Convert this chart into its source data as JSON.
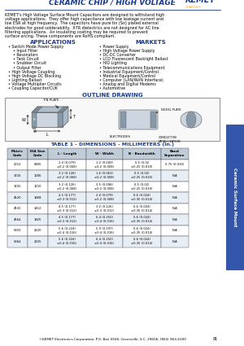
{
  "title": "CERAMIC CHIP / HIGH VOLTAGE",
  "kemet_color": "#1a3a8a",
  "orange_color": "#f5a800",
  "body_text": "KEMET's High Voltage Surface Mount Capacitors are designed to withstand high voltage applications.  They offer high capacitance with low leakage current and low ESR at high frequency.  The capacitors have pure tin (Sn) plated external electrodes for good solderability.  X7R dielectrics are not designed for AC line filtering applications.  An insulating coating may be required to prevent surface arcing. These components are RoHS compliant.",
  "applications_title": "APPLICATIONS",
  "applications": [
    "• Switch Mode Power Supply",
    "    • Input Filter",
    "    • Resonators",
    "    • Tank Circuit",
    "    • Snubber Circuit",
    "    • Output Filter",
    "• High Voltage Coupling",
    "• High Voltage DC Blocking",
    "• Lighting Ballast",
    "• Voltage Multiplier Circuits",
    "• Coupling Capacitor/CUK"
  ],
  "markets_title": "MARKETS",
  "markets": [
    "• Power Supply",
    "• High Voltage Power Supply",
    "• DC-DC Converter",
    "• LCD Fluorescent Backlight Ballast",
    "• HID Lighting",
    "• Telecommunications Equipment",
    "• Industrial Equipment/Control",
    "• Medical Equipment/Control",
    "• Computer (LAN/WAN Interface)",
    "• Analog and Digital Modems",
    "• Automotive"
  ],
  "outline_title": "OUTLINE DRAWING",
  "table_title": "TABLE 1 - DIMENSIONS - MILLIMETERS (in.)",
  "table_headers": [
    "Metric\nCode",
    "EIA Size\nCode",
    "L - Length",
    "W - Width",
    "B - Bandwidth",
    "Band\nSeparation"
  ],
  "table_data": [
    [
      "2012",
      "0805",
      "2.0 (0.079)\n±0.2 (0.008)",
      "1.2 (0.049)\n±0.2 (0.008)",
      "0.5 (0.02\n±0.25 (0.010)",
      "0.75 (0.030)"
    ],
    [
      "3216",
      "1206",
      "3.2 (0.126)\n±0.2 (0.008)",
      "1.6 (0.063)\n±0.2 (0.008)",
      "0.5 (0.02)\n±0.25 (0.010)",
      "N/A"
    ],
    [
      "3225",
      "1210",
      "3.2 (0.126)\n±0.2 (0.008)",
      "2.5 (0.098)\n±0.2 (0.008)",
      "0.5 (0.02)\n±0.25 (0.010)",
      "N/A"
    ],
    [
      "4520",
      "1808",
      "4.5 (0.177)\n±0.3 (0.012)",
      "2.0 (0.079)\n±0.2 (0.008)",
      "0.6 (0.024)\n±0.35 (0.014)",
      "N/A"
    ],
    [
      "4532",
      "1812",
      "4.5 (0.177)\n±0.3 (0.012)",
      "3.2 (0.126)\n±0.3 (0.012)",
      "0.6 (0.024)\n±0.35 (0.014)",
      "N/A"
    ],
    [
      "4564",
      "1825",
      "4.5 (0.177)\n±0.3 (0.012)",
      "6.4 (0.250)\n±0.4 (0.016)",
      "0.6 (0.024)\n±0.35 (0.014)",
      "N/A"
    ],
    [
      "5650",
      "2220",
      "5.6 (0.224)\n±0.4 (0.016)",
      "5.0 (0.197)\n±0.4 (0.016)",
      "0.6 (0.024)\n±0.35 (0.014)",
      "N/A"
    ],
    [
      "5664",
      "2225",
      "5.6 (0.224)\n±0.4 (0.016)",
      "6.4 (0.250)\n±0.4 (0.016)",
      "0.6 (0.024)\n±0.35 (0.014)",
      "N/A"
    ]
  ],
  "footer": "©KEMET Electronics Corporation, P.O. Box 5928, Greenville, S.C. 29606, (864) 963-6300",
  "page_num": "81",
  "sidebar_text": "Ceramic Surface Mount",
  "bg_color": "#ffffff",
  "header_blue": "#1a3a8a",
  "sidebar_blue": "#3355aa"
}
